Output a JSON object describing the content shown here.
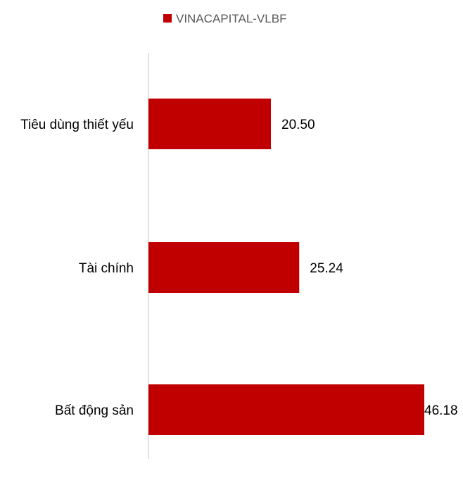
{
  "chart_data": {
    "type": "bar",
    "orientation": "horizontal",
    "categories": [
      "Tiêu dùng thiết yếu",
      "Tài chính",
      "Bất động sản"
    ],
    "series": [
      {
        "name": "VINACAPITAL-VLBF",
        "values": [
          20.5,
          25.24,
          46.18
        ],
        "labels": [
          "20.50",
          "25.24",
          "46.18"
        ]
      }
    ],
    "legend_position": "top",
    "grid": false,
    "xlim": [
      0,
      46.18
    ]
  },
  "colors": {
    "bar": "#C00000",
    "axis": "#D9D9D9",
    "legend_text": "#595959"
  }
}
